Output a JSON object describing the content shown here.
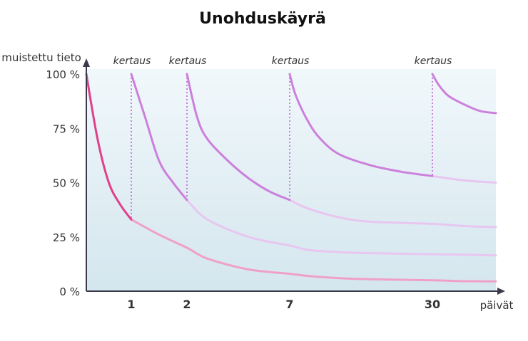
{
  "chart_data": {
    "type": "line",
    "title": "Unohduskäyrä",
    "xlabel": "päivät",
    "ylabel": "muistettu tieto",
    "ytick_labels": [
      "100 %",
      "75 %",
      "50 %",
      "25 %",
      "0 %"
    ],
    "yticks": [
      100,
      75,
      50,
      25,
      0
    ],
    "ylim": [
      0,
      100
    ],
    "xtick_labels": [
      "1",
      "2",
      "7",
      "30"
    ],
    "review_label": "kertaus",
    "review_days": [
      1,
      2,
      7,
      30
    ],
    "grid": false,
    "legend": "none",
    "series": [
      {
        "x": [
          0,
          0.25,
          0.5,
          0.75,
          1,
          1.5,
          2,
          3,
          5,
          7,
          10,
          15,
          20,
          30,
          40,
          50
        ],
        "values": [
          100,
          70,
          50,
          40,
          33,
          26,
          20,
          15,
          10,
          8,
          7,
          6,
          5.5,
          5,
          4.6,
          4.5
        ]
      },
      {
        "x": [
          1,
          1.25,
          1.5,
          1.75,
          2,
          3,
          5,
          7,
          10,
          15,
          20,
          30,
          40,
          50
        ],
        "values": [
          100,
          80,
          60,
          50,
          42,
          33,
          25,
          21,
          19,
          18,
          17.5,
          17,
          16.8,
          16.5
        ]
      },
      {
        "x": [
          2,
          2.5,
          3,
          4,
          5,
          6,
          7,
          10,
          15,
          20,
          30,
          40,
          50
        ],
        "values": [
          100,
          80,
          70,
          60,
          52,
          46,
          42,
          38,
          34,
          32,
          31,
          30,
          29.5
        ]
      },
      {
        "x": [
          7,
          8,
          10,
          12,
          15,
          20,
          25,
          30,
          40,
          50
        ],
        "values": [
          100,
          90,
          78,
          70,
          63,
          58,
          55,
          53,
          51,
          50
        ]
      },
      {
        "x": [
          30,
          32,
          35,
          40,
          45,
          50
        ],
        "values": [
          100,
          95,
          90,
          86,
          83,
          82
        ]
      }
    ],
    "colors": {
      "first_curve": "#e0408a",
      "first_curve_faded": "#f0a0c8",
      "review_curve": "#cc80dc",
      "review_curve_faded": "#e8c6f0",
      "background_top": "#f1f8fb",
      "background_bottom": "#d4e6ee",
      "axis": "#3a3a4a",
      "review_marker": "#c77ed9"
    }
  }
}
